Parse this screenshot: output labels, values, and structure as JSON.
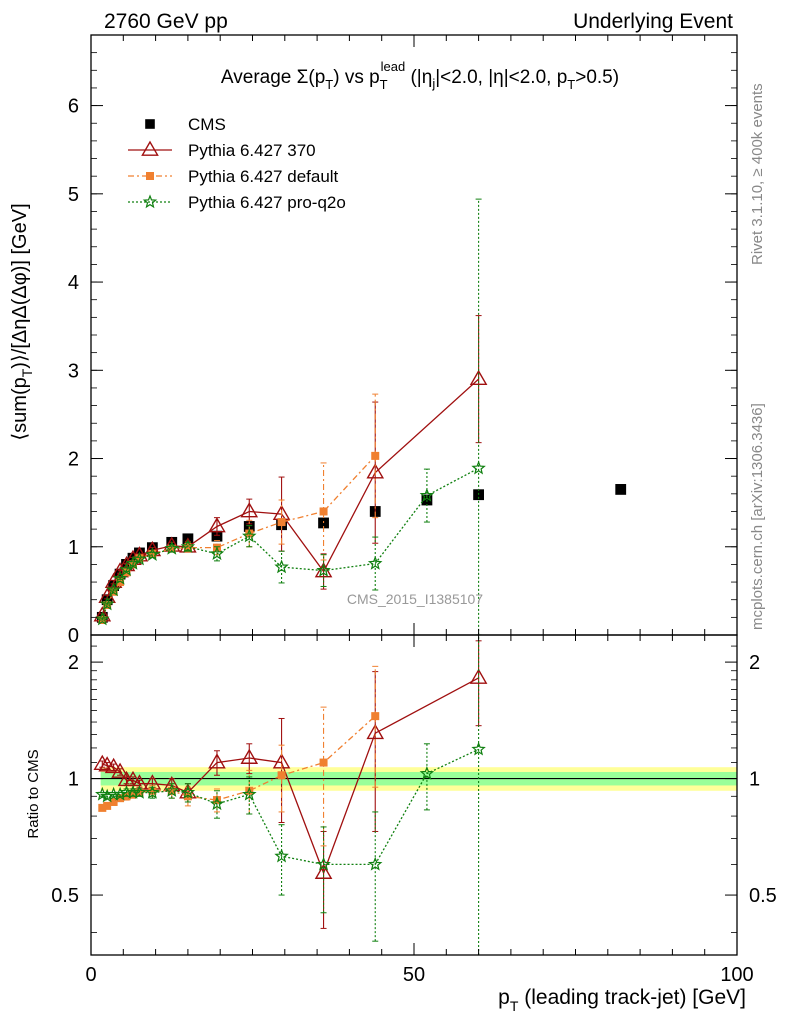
{
  "header": {
    "left": "2760 GeV pp",
    "right": "Underlying Event"
  },
  "side": {
    "rivet": "Rivet 3.1.10, ≥ 400k events",
    "mcplots": "mcplots.cern.ch [arXiv:1306.3436]"
  },
  "watermark": "CMS_2015_I1385107",
  "chart_data": [
    {
      "type": "scatter",
      "title": "Average Σ(pT) vs pT lead (|ηj|<2.0, |η|<2.0, pT>0.5)",
      "xlabel": "pT (leading track-jet) [GeV]",
      "ylabel": "⟨sum(pT)⟩/[ΔηΔ(Δφ)] [GeV]",
      "xlim": [
        0,
        100
      ],
      "ylim": [
        0,
        6.8
      ],
      "yticks": [
        0,
        1,
        2,
        3,
        4,
        5,
        6
      ],
      "xticks": [
        0,
        50,
        100
      ],
      "legend_position": "top-left",
      "series": [
        {
          "name": "CMS",
          "color": "#000000",
          "marker": "square",
          "x": [
            1.75,
            2.5,
            3.5,
            4.5,
            5.5,
            6.5,
            7.5,
            9.5,
            12.5,
            15,
            19.5,
            24.5,
            29.5,
            36,
            44,
            52,
            60,
            82
          ],
          "y": [
            0.2,
            0.4,
            0.56,
            0.69,
            0.8,
            0.87,
            0.93,
            0.99,
            1.05,
            1.09,
            1.12,
            1.23,
            1.25,
            1.27,
            1.4,
            1.53,
            1.59,
            1.65
          ]
        },
        {
          "name": "Pythia 6.427 370",
          "color": "#a01010",
          "marker": "open-triangle",
          "x": [
            1.75,
            2.5,
            3.5,
            4.5,
            5.5,
            6.5,
            7.5,
            9.5,
            12.5,
            15,
            19.5,
            24.5,
            29.5,
            36,
            44,
            60
          ],
          "y": [
            0.22,
            0.43,
            0.6,
            0.72,
            0.79,
            0.86,
            0.9,
            0.96,
            1.01,
            1.0,
            1.23,
            1.4,
            1.37,
            0.72,
            1.84,
            2.9
          ],
          "yerr": [
            0.02,
            0.02,
            0.02,
            0.02,
            0.02,
            0.02,
            0.02,
            0.03,
            0.04,
            0.06,
            0.1,
            0.14,
            0.42,
            0.2,
            0.8,
            0.72
          ]
        },
        {
          "name": "Pythia 6.427 default",
          "color": "#f08030",
          "marker": "filled-square",
          "x": [
            1.75,
            2.5,
            3.5,
            4.5,
            5.5,
            6.5,
            7.5,
            9.5,
            12.5,
            15,
            19.5,
            24.5,
            29.5,
            36,
            44
          ],
          "y": [
            0.17,
            0.34,
            0.49,
            0.6,
            0.71,
            0.8,
            0.87,
            0.92,
            0.98,
            0.99,
            0.99,
            1.15,
            1.28,
            1.4,
            2.03
          ],
          "yerr": [
            0.01,
            0.01,
            0.01,
            0.01,
            0.02,
            0.02,
            0.02,
            0.03,
            0.04,
            0.05,
            0.08,
            0.15,
            0.25,
            0.55,
            0.7
          ]
        },
        {
          "name": "Pythia 6.427 pro-q2o",
          "color": "#108010",
          "marker": "open-star",
          "x": [
            1.75,
            2.5,
            3.5,
            4.5,
            5.5,
            6.5,
            7.5,
            9.5,
            12.5,
            15,
            19.5,
            24.5,
            29.5,
            36,
            44,
            52,
            60
          ],
          "y": [
            0.18,
            0.35,
            0.51,
            0.64,
            0.74,
            0.81,
            0.86,
            0.91,
            0.98,
            1.0,
            0.92,
            1.12,
            0.77,
            0.73,
            0.81,
            1.58,
            1.89
          ],
          "yerr": [
            0.01,
            0.01,
            0.01,
            0.01,
            0.02,
            0.02,
            0.02,
            0.03,
            0.04,
            0.05,
            0.08,
            0.12,
            0.18,
            0.18,
            0.3,
            0.3,
            3.05
          ]
        }
      ]
    },
    {
      "type": "scatter",
      "title": "",
      "xlabel": "pT (leading track-jet) [GeV]",
      "ylabel": "Ratio to CMS",
      "xlim": [
        0,
        100
      ],
      "ylim": [
        0.35,
        2.35
      ],
      "yticks": [
        0.5,
        1,
        2
      ],
      "xticks": [
        0,
        50,
        100
      ],
      "band_inner": [
        0.96,
        1.04
      ],
      "band_outer": [
        0.93,
        1.07
      ],
      "series": [
        {
          "name": "Pythia 6.427 370",
          "color": "#a01010",
          "marker": "open-triangle",
          "x": [
            1.75,
            2.5,
            3.5,
            4.5,
            5.5,
            6.5,
            7.5,
            9.5,
            12.5,
            15,
            19.5,
            24.5,
            29.5,
            36,
            44,
            60
          ],
          "y": [
            1.09,
            1.08,
            1.07,
            1.04,
            0.99,
            0.99,
            0.97,
            0.97,
            0.96,
            0.92,
            1.1,
            1.13,
            1.1,
            0.57,
            1.31,
            1.82
          ],
          "yerr": [
            0.02,
            0.02,
            0.02,
            0.02,
            0.02,
            0.02,
            0.02,
            0.03,
            0.04,
            0.05,
            0.08,
            0.1,
            0.33,
            0.16,
            0.58,
            0.45
          ]
        },
        {
          "name": "Pythia 6.427 default",
          "color": "#f08030",
          "marker": "filled-square",
          "x": [
            1.75,
            2.5,
            3.5,
            4.5,
            5.5,
            6.5,
            7.5,
            9.5,
            12.5,
            15,
            19.5,
            24.5,
            29.5,
            36,
            44
          ],
          "y": [
            0.84,
            0.85,
            0.87,
            0.89,
            0.9,
            0.91,
            0.92,
            0.93,
            0.93,
            0.9,
            0.88,
            0.93,
            1.02,
            1.1,
            1.45
          ],
          "yerr": [
            0.01,
            0.01,
            0.01,
            0.01,
            0.02,
            0.02,
            0.02,
            0.03,
            0.04,
            0.05,
            0.06,
            0.12,
            0.2,
            0.43,
            0.5
          ]
        },
        {
          "name": "Pythia 6.427 pro-q2o",
          "color": "#108010",
          "marker": "open-star",
          "x": [
            1.75,
            2.5,
            3.5,
            4.5,
            5.5,
            6.5,
            7.5,
            9.5,
            12.5,
            15,
            19.5,
            24.5,
            29.5,
            36,
            44,
            52,
            60
          ],
          "y": [
            0.91,
            0.9,
            0.91,
            0.91,
            0.92,
            0.92,
            0.92,
            0.92,
            0.93,
            0.92,
            0.86,
            0.91,
            0.63,
            0.6,
            0.6,
            1.03,
            1.19
          ],
          "yerr": [
            0.01,
            0.01,
            0.01,
            0.01,
            0.02,
            0.02,
            0.02,
            0.03,
            0.04,
            0.05,
            0.07,
            0.1,
            0.13,
            0.15,
            0.22,
            0.2,
            1.9
          ]
        }
      ]
    }
  ]
}
